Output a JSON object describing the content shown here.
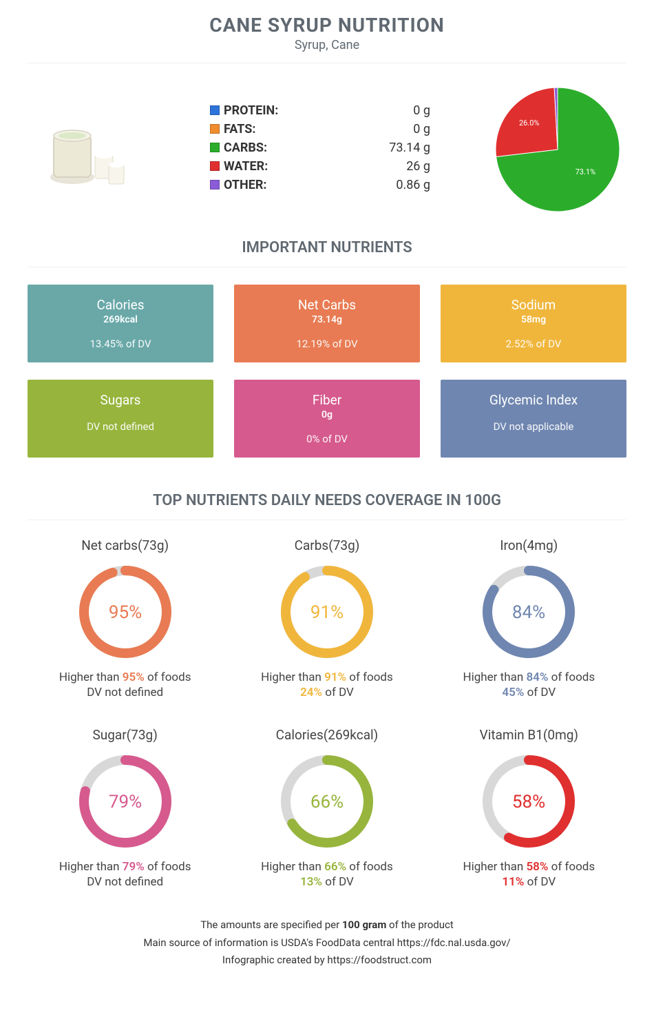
{
  "header": {
    "title": "CANE SYRUP NUTRITION",
    "subtitle": "Syrup, Cane"
  },
  "macros": [
    {
      "label": "PROTEIN:",
      "value": "0 g",
      "color": "#2d74da"
    },
    {
      "label": "FATS:",
      "value": "0 g",
      "color": "#f08c2e"
    },
    {
      "label": "CARBS:",
      "value": "73.14 g",
      "color": "#2bad2b"
    },
    {
      "label": "WATER:",
      "value": "26 g",
      "color": "#e02f2f"
    },
    {
      "label": "OTHER:",
      "value": "0.86 g",
      "color": "#8a5bd6"
    }
  ],
  "pie": {
    "slices": [
      {
        "color": "#2bad2b",
        "pct": 73.14,
        "label": "73.1%"
      },
      {
        "color": "#e02f2f",
        "pct": 26.0,
        "label": "26.0%"
      },
      {
        "color": "#8a5bd6",
        "pct": 0.86,
        "label": ""
      }
    ]
  },
  "section1_title": "IMPORTANT NUTRIENTS",
  "cards": [
    {
      "name": "Calories",
      "amount": "269kcal",
      "dv": "13.45% of DV",
      "bg": "#6aa8a8"
    },
    {
      "name": "Net Carbs",
      "amount": "73.14g",
      "dv": "12.19% of DV",
      "bg": "#e87b53"
    },
    {
      "name": "Sodium",
      "amount": "58mg",
      "dv": "2.52% of DV",
      "bg": "#f0b63c"
    },
    {
      "name": "Sugars",
      "amount": "",
      "dv": "DV not defined",
      "bg": "#97b53d"
    },
    {
      "name": "Fiber",
      "amount": "0g",
      "dv": "0% of DV",
      "bg": "#d65a8e"
    },
    {
      "name": "Glycemic Index",
      "amount": "",
      "dv": "DV not applicable",
      "bg": "#6f86b0"
    }
  ],
  "section2_title": "TOP NUTRIENTS DAILY NEEDS COVERAGE IN 100G",
  "donuts": [
    {
      "title": "Net carbs(73g)",
      "pct": 95,
      "color": "#e87b53",
      "higher": "95%",
      "dv": "DV not defined",
      "dv_hl": ""
    },
    {
      "title": "Carbs(73g)",
      "pct": 91,
      "color": "#f0b63c",
      "higher": "91%",
      "dv": " of DV",
      "dv_hl": "24%"
    },
    {
      "title": "Iron(4mg)",
      "pct": 84,
      "color": "#6f86b0",
      "higher": "84%",
      "dv": " of DV",
      "dv_hl": "45%"
    },
    {
      "title": "Sugar(73g)",
      "pct": 79,
      "color": "#d65a8e",
      "higher": "79%",
      "dv": "DV not defined",
      "dv_hl": ""
    },
    {
      "title": "Calories(269kcal)",
      "pct": 66,
      "color": "#97b53d",
      "higher": "66%",
      "dv": " of DV",
      "dv_hl": "13%"
    },
    {
      "title": "Vitamin B1(0mg)",
      "pct": 58,
      "color": "#e02f2f",
      "higher": "58%",
      "dv": " of DV",
      "dv_hl": "11%"
    }
  ],
  "footer": {
    "line1_a": "The amounts are specified per ",
    "line1_b": "100 gram",
    "line1_c": " of the product",
    "line2": "Main source of information is USDA's FoodData central https://fdc.nal.usda.gov/",
    "line3": "Infographic created by https://foodstruct.com"
  }
}
